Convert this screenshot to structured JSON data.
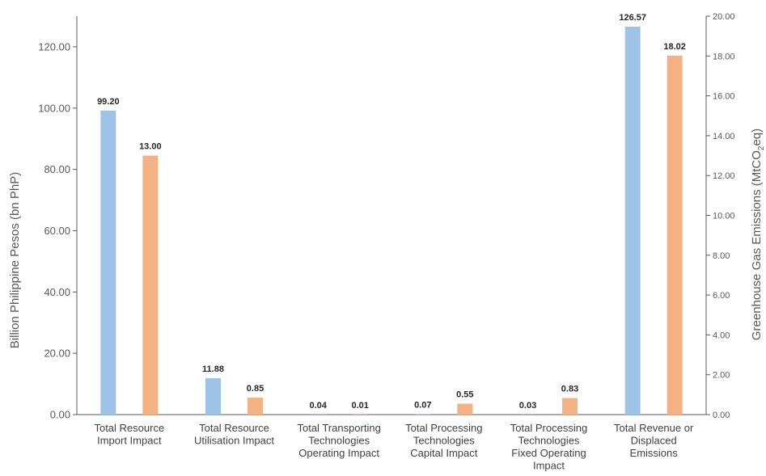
{
  "chart_data": {
    "type": "bar",
    "categories": [
      [
        "Total Resource",
        "Import Impact"
      ],
      [
        "Total Resource",
        "Utilisation Impact"
      ],
      [
        "Total Transporting",
        "Technologies",
        "Operating Impact"
      ],
      [
        "Total Processing",
        "Technologies",
        "Capital Impact"
      ],
      [
        "Total Processing",
        "Technologies",
        "Fixed Operating",
        "Impact"
      ],
      [
        "Total Revenue or",
        "Displaced",
        "Emissions"
      ]
    ],
    "series": [
      {
        "values": [
          99.2,
          11.88,
          0.04,
          0.07,
          0.03,
          126.57
        ],
        "labels": [
          "99.20",
          "11.88",
          "0.04",
          "0.07",
          "0.03",
          "126.57"
        ],
        "color": "#9dc3e6",
        "axis": "left"
      },
      {
        "values": [
          13.0,
          0.85,
          0.01,
          0.55,
          0.83,
          18.02
        ],
        "labels": [
          "13.00",
          "0.85",
          "0.01",
          "0.55",
          "0.83",
          "18.02"
        ],
        "color": "#f4b183",
        "axis": "right"
      }
    ],
    "ylabel": "Billion Philippine Pesos (bn PhP)",
    "y2label_parts": [
      "Greenhouse Gas Emissions (MtCO",
      "2",
      "eq)"
    ],
    "ylim": [
      0,
      130
    ],
    "y2lim": [
      0,
      20
    ],
    "yticks": [
      "0.00",
      "20.00",
      "40.00",
      "60.00",
      "80.00",
      "100.00",
      "120.00"
    ],
    "y2ticks": [
      "0.00",
      "2.00",
      "4.00",
      "6.00",
      "8.00",
      "10.00",
      "12.00",
      "14.00",
      "16.00",
      "18.00",
      "20.00"
    ],
    "grid": false
  }
}
